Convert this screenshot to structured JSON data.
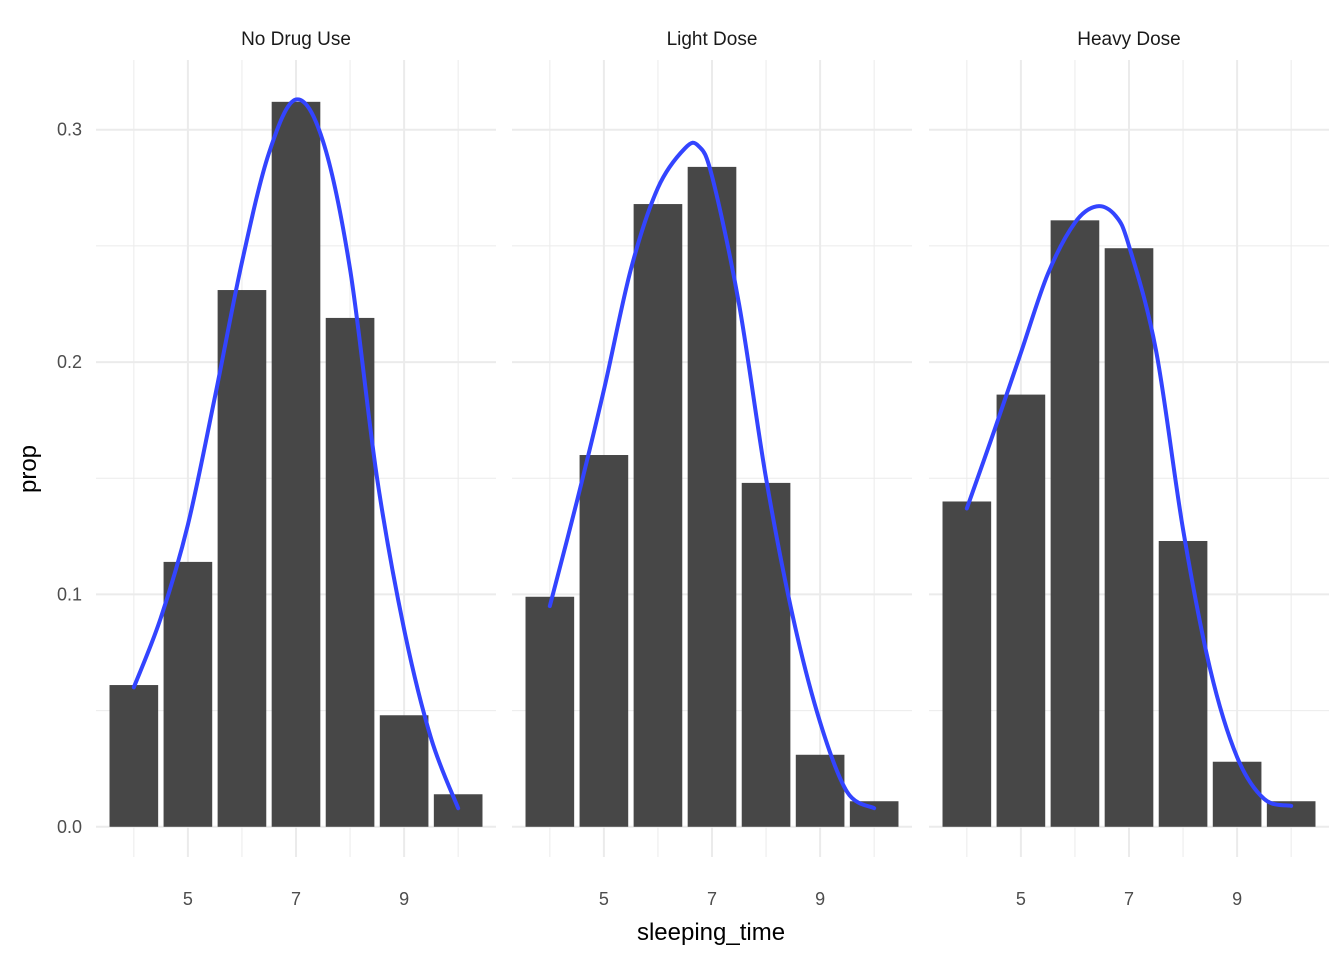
{
  "chart_data": {
    "type": "bar",
    "xlabel": "sleeping_time",
    "ylabel": "prop",
    "x_ticks": [
      5,
      7,
      9
    ],
    "y_ticks": [
      "0.0",
      "0.1",
      "0.2",
      "0.3"
    ],
    "xlim": [
      3.3,
      10.7
    ],
    "ylim": [
      -0.013,
      0.33
    ],
    "grid": true,
    "colors": {
      "bar": "#474747",
      "line": "#3344ff",
      "grid": "#ebebeb"
    },
    "panels": [
      {
        "label": "No Drug Use",
        "x": [
          4,
          5,
          6,
          7,
          8,
          9,
          10
        ],
        "values": [
          0.061,
          0.114,
          0.231,
          0.312,
          0.219,
          0.048,
          0.014
        ],
        "smooth": [
          [
            4.0,
            0.06
          ],
          [
            4.5,
            0.09
          ],
          [
            5.0,
            0.13
          ],
          [
            5.5,
            0.185
          ],
          [
            6.0,
            0.243
          ],
          [
            6.5,
            0.29
          ],
          [
            7.0,
            0.313
          ],
          [
            7.5,
            0.295
          ],
          [
            8.0,
            0.24
          ],
          [
            8.5,
            0.15
          ],
          [
            9.0,
            0.085
          ],
          [
            9.5,
            0.038
          ],
          [
            10.0,
            0.008
          ]
        ]
      },
      {
        "label": "Light Dose",
        "x": [
          4,
          5,
          6,
          7,
          8,
          9,
          10
        ],
        "values": [
          0.099,
          0.16,
          0.268,
          0.284,
          0.148,
          0.031,
          0.011
        ],
        "smooth": [
          [
            4.0,
            0.095
          ],
          [
            4.5,
            0.14
          ],
          [
            5.0,
            0.188
          ],
          [
            5.5,
            0.24
          ],
          [
            6.0,
            0.275
          ],
          [
            6.5,
            0.292
          ],
          [
            6.75,
            0.293
          ],
          [
            7.0,
            0.28
          ],
          [
            7.5,
            0.225
          ],
          [
            8.0,
            0.15
          ],
          [
            8.5,
            0.09
          ],
          [
            9.0,
            0.045
          ],
          [
            9.5,
            0.015
          ],
          [
            10.0,
            0.008
          ]
        ]
      },
      {
        "label": "Heavy Dose",
        "x": [
          4,
          5,
          6,
          7,
          8,
          9,
          10
        ],
        "values": [
          0.14,
          0.186,
          0.261,
          0.249,
          0.123,
          0.028,
          0.011
        ],
        "smooth": [
          [
            4.0,
            0.137
          ],
          [
            4.5,
            0.17
          ],
          [
            5.0,
            0.204
          ],
          [
            5.5,
            0.238
          ],
          [
            6.0,
            0.26
          ],
          [
            6.4,
            0.267
          ],
          [
            6.75,
            0.263
          ],
          [
            7.0,
            0.25
          ],
          [
            7.5,
            0.205
          ],
          [
            8.0,
            0.128
          ],
          [
            8.5,
            0.068
          ],
          [
            9.0,
            0.03
          ],
          [
            9.5,
            0.012
          ],
          [
            10.0,
            0.009
          ]
        ]
      }
    ]
  }
}
